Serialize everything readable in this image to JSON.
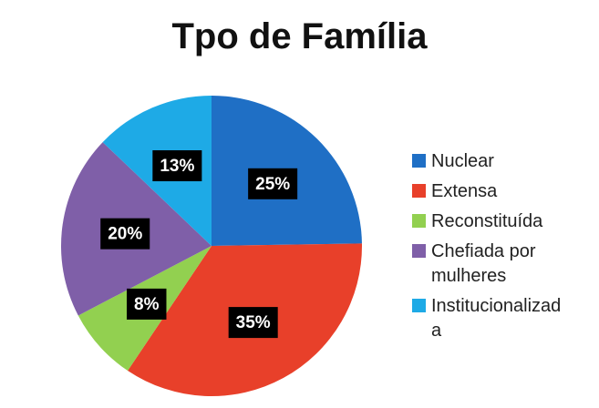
{
  "chart_data": {
    "type": "pie",
    "title": "Tpo de Família",
    "categories": [
      "Nuclear",
      "Extensa",
      "Reconstituída",
      "Chefiada por mulheres",
      "Institucionalizada"
    ],
    "values": [
      25,
      35,
      8,
      20,
      13
    ],
    "value_labels": [
      "25%",
      "35%",
      "8%",
      "20%",
      "13%"
    ],
    "colors": [
      "#1f6fc5",
      "#e8402a",
      "#92d050",
      "#7f5fa8",
      "#1eaae6"
    ],
    "legend": "right"
  }
}
